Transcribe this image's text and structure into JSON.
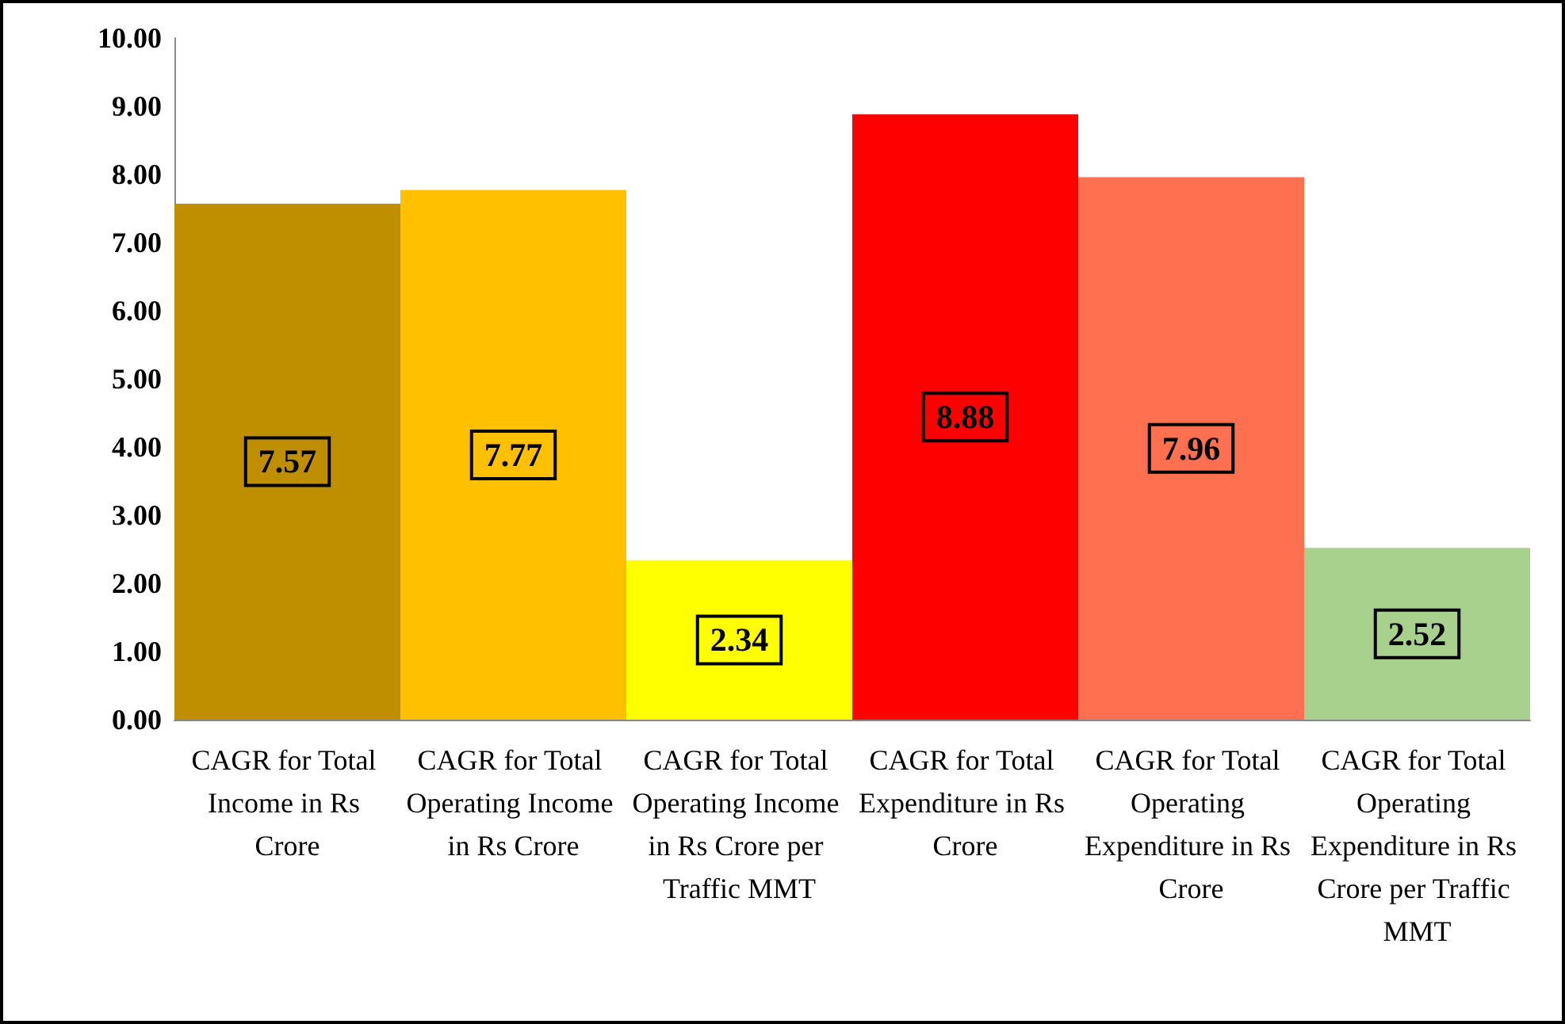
{
  "chart_data": {
    "type": "bar",
    "categories": [
      "CAGR for Total Income in Rs Crore",
      "CAGR for Total Operating Income in Rs Crore",
      "CAGR for Total Operating Income in Rs Crore per Traffic MMT",
      "CAGR for Total Expenditure in Rs Crore",
      "CAGR for Total Operating Expenditure in Rs Crore",
      "CAGR for Total Operating Expenditure in Rs Crore per Traffic MMT"
    ],
    "values": [
      7.57,
      7.77,
      2.34,
      8.88,
      7.96,
      2.52
    ],
    "colors": [
      "#bf8f00",
      "#ffc000",
      "#ffff00",
      "#ff0000",
      "#ff7050",
      "#a9d18e"
    ],
    "ylim": [
      0,
      10
    ],
    "yticks": [
      {
        "value": 0,
        "label": "0.00"
      },
      {
        "value": 1,
        "label": "1.00"
      },
      {
        "value": 2,
        "label": "2.00"
      },
      {
        "value": 3,
        "label": "3.00"
      },
      {
        "value": 4,
        "label": "4.00"
      },
      {
        "value": 5,
        "label": "5.00"
      },
      {
        "value": 6,
        "label": "6.00"
      },
      {
        "value": 7,
        "label": "7.00"
      },
      {
        "value": 8,
        "label": "8.00"
      },
      {
        "value": 9,
        "label": "9.00"
      },
      {
        "value": 10,
        "label": "10.00"
      }
    ],
    "data_labels": true,
    "grid": false
  }
}
